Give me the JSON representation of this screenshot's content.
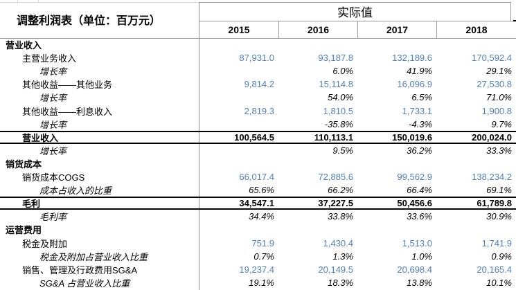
{
  "sheet": {
    "title": "调整利润表（单位：百万元）",
    "header": {
      "group_label": "实际值",
      "years": [
        "2015",
        "2016",
        "2017",
        "2018"
      ]
    },
    "rows": [
      {
        "label": "营业收入",
        "indent": 0,
        "style": "section",
        "values": [
          "",
          "",
          "",
          ""
        ]
      },
      {
        "label": "主营业务收入",
        "indent": 1,
        "style": "value",
        "values": [
          "87,931.0",
          "93,187.8",
          "132,189.6",
          "170,592.4"
        ]
      },
      {
        "label": "增长率",
        "indent": 2,
        "style": "ratio",
        "values": [
          "",
          "6.0%",
          "41.9%",
          "29.1%"
        ]
      },
      {
        "label": "其他收益——其他业务",
        "indent": 1,
        "style": "value",
        "values": [
          "9,814.2",
          "15,114.8",
          "16,096.9",
          "27,530.8"
        ]
      },
      {
        "label": "增长率",
        "indent": 2,
        "style": "ratio",
        "values": [
          "",
          "54.0%",
          "6.5%",
          "71.0%"
        ]
      },
      {
        "label": "其他收益——利息收入",
        "indent": 1,
        "style": "value",
        "values": [
          "2,819.3",
          "1,810.5",
          "1,733.1",
          "1,900.8"
        ]
      },
      {
        "label": "增长率",
        "indent": 2,
        "style": "ratio",
        "values": [
          "",
          "-35.8%",
          "-4.3%",
          "9.7%"
        ]
      },
      {
        "label": "营业收入",
        "indent": 1,
        "style": "total",
        "values": [
          "100,564.5",
          "110,113.1",
          "150,019.6",
          "200,024.0"
        ]
      },
      {
        "label": "增长率",
        "indent": 2,
        "style": "ratio",
        "values": [
          "",
          "9.5%",
          "36.2%",
          "33.3%"
        ]
      },
      {
        "label": "销货成本",
        "indent": 0,
        "style": "section",
        "values": [
          "",
          "",
          "",
          ""
        ]
      },
      {
        "label": "销货成本COGS",
        "indent": 1,
        "style": "value",
        "values": [
          "66,017.4",
          "72,885.6",
          "99,562.9",
          "138,234.2"
        ]
      },
      {
        "label": "成本占收入的比重",
        "indent": 2,
        "style": "ratio",
        "values": [
          "65.6%",
          "66.2%",
          "66.4%",
          "69.1%"
        ]
      },
      {
        "label": "毛利",
        "indent": 1,
        "style": "total",
        "values": [
          "34,547.1",
          "37,227.5",
          "50,456.6",
          "61,789.8"
        ]
      },
      {
        "label": "毛利率",
        "indent": 2,
        "style": "ratio",
        "values": [
          "34.4%",
          "33.8%",
          "33.6%",
          "30.9%"
        ]
      },
      {
        "label": "运营费用",
        "indent": 0,
        "style": "section",
        "values": [
          "",
          "",
          "",
          ""
        ]
      },
      {
        "label": "税金及附加",
        "indent": 1,
        "style": "value",
        "values": [
          "751.9",
          "1,430.4",
          "1,513.0",
          "1,741.9"
        ]
      },
      {
        "label": "税金及附加占营业收入比重",
        "indent": 2,
        "style": "ratio",
        "values": [
          "0.7%",
          "1.3%",
          "1.0%",
          "0.9%"
        ]
      },
      {
        "label": "销售、管理及行政费用SG&A",
        "indent": 1,
        "style": "value",
        "values": [
          "19,237.4",
          "20,149.5",
          "20,698.4",
          "20,165.4"
        ]
      },
      {
        "label": "SG&A 占营业收入比重",
        "indent": 2,
        "style": "ratio",
        "values": [
          "19.1%",
          "18.3%",
          "13.8%",
          "10.1%"
        ]
      }
    ],
    "colors": {
      "value_blue": "#4f81bd",
      "grid_gray": "#9a9a9a",
      "total_border_black": "#000000",
      "background": "#ffffff",
      "text_black": "#000000"
    }
  }
}
